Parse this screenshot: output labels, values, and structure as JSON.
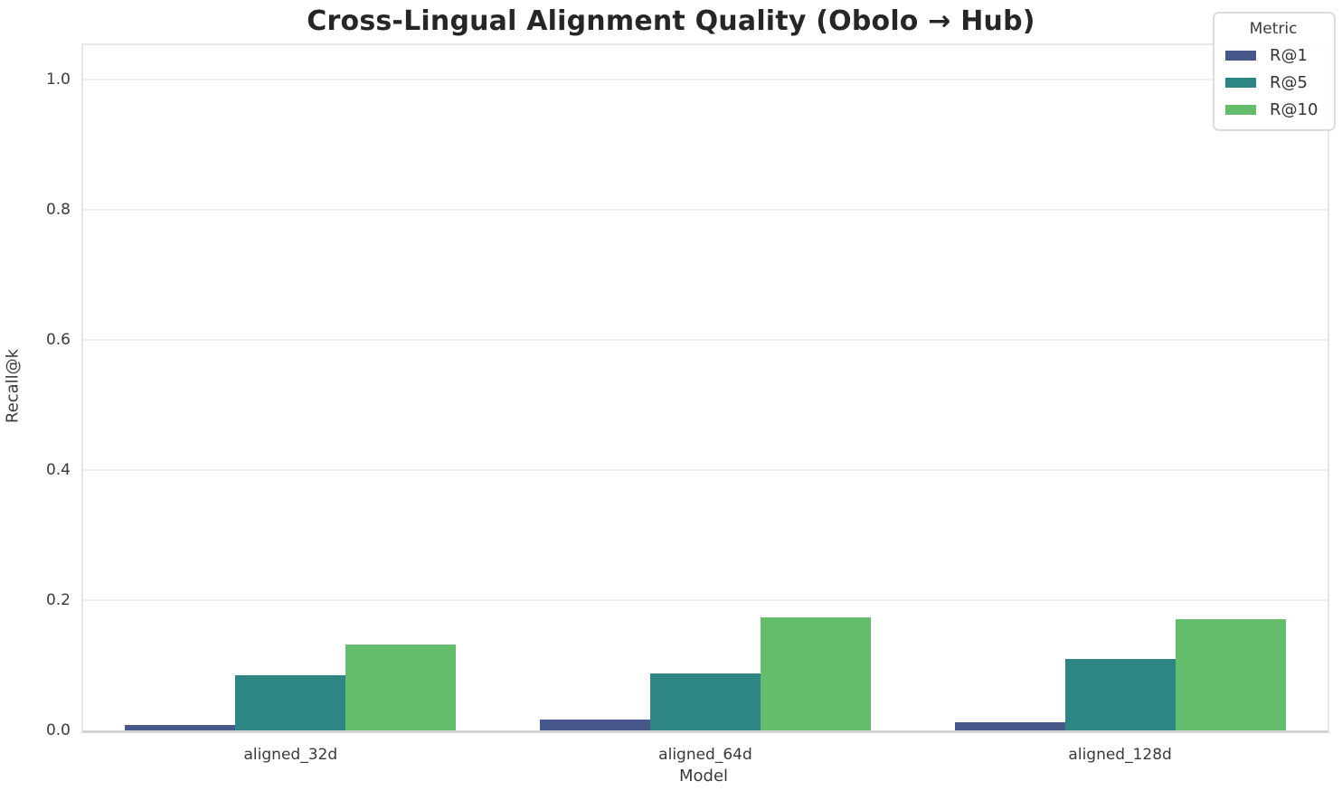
{
  "figure": {
    "title": "Cross-Lingual Alignment Quality (Obolo → Hub)"
  },
  "chart_data": {
    "type": "bar",
    "title": "Cross-Lingual Alignment Quality (Obolo → Hub)",
    "xlabel": "Model",
    "ylabel": "Recall@k",
    "categories": [
      "aligned_32d",
      "aligned_64d",
      "aligned_128d"
    ],
    "series": [
      {
        "name": "R@1",
        "color": "#46588a",
        "values": [
          0.008,
          0.016,
          0.013
        ]
      },
      {
        "name": "R@5",
        "color": "#2d8584",
        "values": [
          0.085,
          0.088,
          0.11
        ]
      },
      {
        "name": "R@10",
        "color": "#64bd6a",
        "values": [
          0.132,
          0.173,
          0.171
        ]
      }
    ],
    "ylim": [
      0,
      1.05
    ],
    "yticks": [
      0.0,
      0.2,
      0.4,
      0.6,
      0.8,
      1.0
    ],
    "ytick_labels": [
      "0.0",
      "0.2",
      "0.4",
      "0.6",
      "0.8",
      "1.0"
    ],
    "legend_title": "Metric",
    "legend_position": "upper right",
    "grid": "horizontal-only",
    "style": "seaborn-whitegrid"
  }
}
